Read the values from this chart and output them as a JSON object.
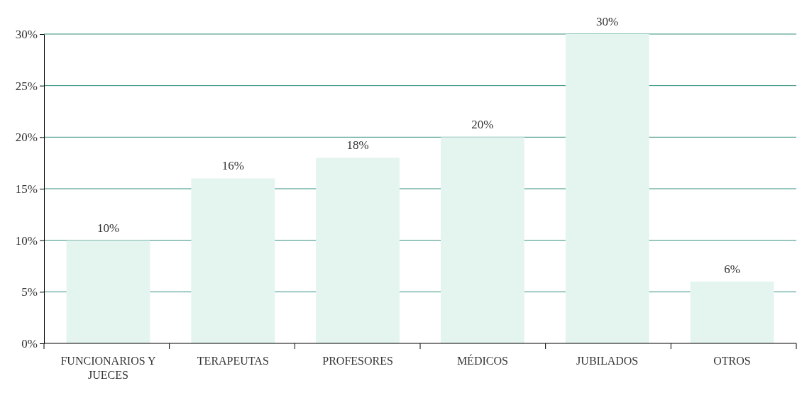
{
  "chart_data": {
    "type": "bar",
    "categories": [
      "FUNCIONARIOS Y JUECES",
      "TERAPEUTAS",
      "PROFESORES",
      "MÉDICOS",
      "JUBILADOS",
      "OTROS"
    ],
    "values": [
      10,
      16,
      18,
      20,
      30,
      6
    ],
    "color": "#e4f4ee",
    "value_labels": [
      "10%",
      "16%",
      "18%",
      "20%",
      "30%",
      "6%"
    ],
    "ylim": [
      0,
      30
    ],
    "yticks": [
      {
        "value": 0,
        "label": "0%"
      },
      {
        "value": 5,
        "label": "5%"
      },
      {
        "value": 10,
        "label": "10%"
      },
      {
        "value": 15,
        "label": "15%"
      },
      {
        "value": 20,
        "label": "20%"
      },
      {
        "value": 25,
        "label": "25%"
      },
      {
        "value": 30,
        "label": "30%"
      }
    ],
    "grid": "y"
  }
}
